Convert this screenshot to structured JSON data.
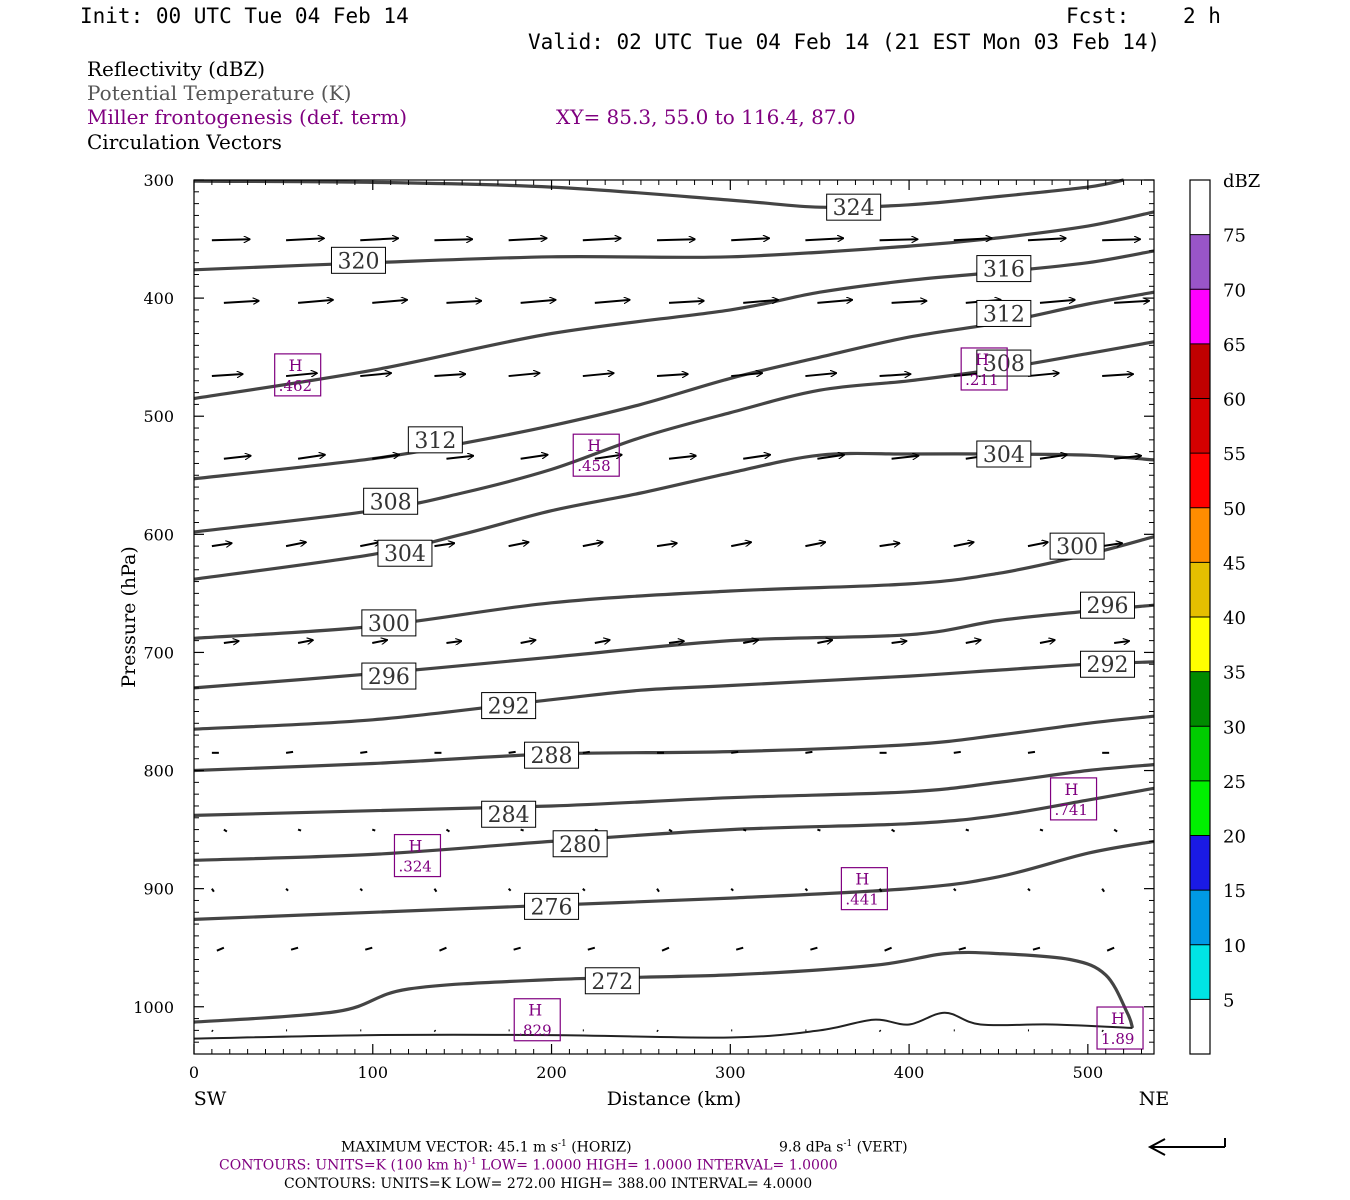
{
  "header": {
    "init": "Init: 00 UTC Tue 04 Feb 14",
    "fcst_label": "Fcst:",
    "fcst_value": "2 h",
    "valid": "Valid: 02 UTC Tue 04 Feb 14 (21 EST Mon 03 Feb 14)"
  },
  "legend": {
    "reflectivity": "Reflectivity (dBZ)",
    "theta": "Potential Temperature (K)",
    "miller": "Miller frontogenesis (def. term)",
    "xy": "XY=  85.3, 55.0 to 116.4, 87.0",
    "vectors": "Circulation Vectors"
  },
  "colors": {
    "contour": "#444444",
    "purple": "#800080",
    "vector": "#000000"
  },
  "colorbar": {
    "title": "dBZ",
    "levels": [
      {
        "label": "5",
        "color": "#00e5e5"
      },
      {
        "label": "10",
        "color": "#0099e5"
      },
      {
        "label": "15",
        "color": "#1a1ae5"
      },
      {
        "label": "20",
        "color": "#00f000"
      },
      {
        "label": "25",
        "color": "#00cc00"
      },
      {
        "label": "30",
        "color": "#008a00"
      },
      {
        "label": "35",
        "color": "#ffff00"
      },
      {
        "label": "40",
        "color": "#e5bf00"
      },
      {
        "label": "45",
        "color": "#ff8c00"
      },
      {
        "label": "50",
        "color": "#ff0000"
      },
      {
        "label": "55",
        "color": "#d40000"
      },
      {
        "label": "60",
        "color": "#c00000"
      },
      {
        "label": "65",
        "color": "#ff00ff"
      },
      {
        "label": "70",
        "color": "#9955c8"
      },
      {
        "label": "75",
        "color": "#ffffff"
      }
    ]
  },
  "footer": {
    "max_vector": "MAXIMUM VECTOR:  45.1 m s",
    "max_vector_exp": "-1",
    "max_vector_horiz": " (HORIZ)",
    "vert_value": "9.8 dPa s",
    "vert_exp": "-1",
    "vert_suffix": " (VERT)",
    "contours_miller_a": "CONTOURS:  UNITS=K (100 km h)",
    "contours_miller_exp": "-1",
    "contours_miller_b": "  LOW=   1.0000       HIGH=  1.0000       INTERVAL=     1.0000",
    "contours_theta": "CONTOURS:  UNITS=K   LOW=   272.00       HIGH=   388.00       INTERVAL=      4.0000"
  },
  "chart_data": {
    "type": "line",
    "title": "",
    "xlabel": "Distance (km)",
    "ylabel": "Pressure (hPa)",
    "xlim": [
      0,
      537
    ],
    "ylim": [
      1040,
      300
    ],
    "y_log": false,
    "x_ticks": [
      "0",
      "100",
      "200",
      "300",
      "400",
      "500"
    ],
    "y_ticks": [
      "300",
      "400",
      "500",
      "600",
      "700",
      "800",
      "900",
      "1000"
    ],
    "x_end_labels": {
      "left": "SW",
      "right": "NE"
    },
    "grid": false,
    "series": [
      {
        "name": "324",
        "values": [
          [
            0,
            301
          ],
          [
            100,
            302
          ],
          [
            200,
            306
          ],
          [
            300,
            317
          ],
          [
            350,
            323
          ],
          [
            400,
            321
          ],
          [
            450,
            314
          ],
          [
            500,
            306
          ],
          [
            520,
            300
          ]
        ],
        "label_at": [
          369,
          323
        ]
      },
      {
        "name": "320",
        "values": [
          [
            0,
            376
          ],
          [
            100,
            370
          ],
          [
            200,
            365
          ],
          [
            300,
            365
          ],
          [
            400,
            356
          ],
          [
            450,
            349
          ],
          [
            500,
            339
          ],
          [
            537,
            327
          ]
        ],
        "label_at": [
          92,
          368
        ]
      },
      {
        "name": "316",
        "values": [
          [
            0,
            485
          ],
          [
            100,
            461
          ],
          [
            200,
            430
          ],
          [
            300,
            410
          ],
          [
            350,
            395
          ],
          [
            400,
            385
          ],
          [
            450,
            378
          ],
          [
            500,
            370
          ],
          [
            537,
            360
          ]
        ],
        "label_at": [
          453,
          375
        ]
      },
      {
        "name": "312",
        "values": [
          [
            0,
            553
          ],
          [
            100,
            536
          ],
          [
            150,
            523
          ],
          [
            200,
            508
          ],
          [
            250,
            490
          ],
          [
            300,
            468
          ],
          [
            350,
            450
          ],
          [
            400,
            433
          ],
          [
            450,
            421
          ],
          [
            500,
            405
          ],
          [
            537,
            395
          ]
        ],
        "label_at": [
          135,
          520
        ],
        "label2": "312",
        "label2_at": [
          453,
          413
        ]
      },
      {
        "name": "308",
        "values": [
          [
            0,
            598
          ],
          [
            100,
            580
          ],
          [
            150,
            565
          ],
          [
            200,
            545
          ],
          [
            250,
            518
          ],
          [
            300,
            497
          ],
          [
            350,
            478
          ],
          [
            400,
            470
          ],
          [
            450,
            460
          ],
          [
            500,
            447
          ],
          [
            537,
            437
          ]
        ],
        "label_at": [
          110,
          572
        ],
        "label2": "308",
        "label2_at": [
          453,
          455
        ]
      },
      {
        "name": "304",
        "values": [
          [
            0,
            638
          ],
          [
            100,
            617
          ],
          [
            150,
            600
          ],
          [
            200,
            580
          ],
          [
            250,
            565
          ],
          [
            300,
            548
          ],
          [
            350,
            533
          ],
          [
            400,
            532
          ],
          [
            450,
            532
          ],
          [
            500,
            533
          ],
          [
            537,
            537
          ]
        ],
        "label_at": [
          118,
          616
        ],
        "label2": "304",
        "label2_at": [
          453,
          532
        ]
      },
      {
        "name": "300",
        "values": [
          [
            0,
            688
          ],
          [
            100,
            678
          ],
          [
            200,
            658
          ],
          [
            300,
            648
          ],
          [
            400,
            642
          ],
          [
            450,
            633
          ],
          [
            500,
            617
          ],
          [
            537,
            602
          ]
        ],
        "label_at": [
          109,
          675
        ],
        "label2": "300",
        "label2_at": [
          494,
          610
        ]
      },
      {
        "name": "296",
        "values": [
          [
            0,
            730
          ],
          [
            100,
            718
          ],
          [
            200,
            704
          ],
          [
            300,
            690
          ],
          [
            400,
            685
          ],
          [
            450,
            673
          ],
          [
            500,
            665
          ],
          [
            537,
            660
          ]
        ],
        "label_at": [
          109,
          720
        ],
        "label2": "296",
        "label2_at": [
          511,
          660
        ]
      },
      {
        "name": "292",
        "values": [
          [
            0,
            765
          ],
          [
            100,
            757
          ],
          [
            200,
            740
          ],
          [
            250,
            732
          ],
          [
            300,
            728
          ],
          [
            400,
            720
          ],
          [
            450,
            715
          ],
          [
            500,
            710
          ],
          [
            537,
            708
          ]
        ],
        "label_at": [
          176,
          745
        ],
        "label2": "292",
        "label2_at": [
          511,
          710
        ]
      },
      {
        "name": "288",
        "values": [
          [
            0,
            800
          ],
          [
            100,
            794
          ],
          [
            200,
            786
          ],
          [
            300,
            784
          ],
          [
            400,
            778
          ],
          [
            450,
            770
          ],
          [
            500,
            760
          ],
          [
            537,
            754
          ]
        ],
        "label_at": [
          200,
          787
        ]
      },
      {
        "name": "284",
        "values": [
          [
            0,
            838
          ],
          [
            100,
            834
          ],
          [
            200,
            830
          ],
          [
            300,
            823
          ],
          [
            400,
            818
          ],
          [
            450,
            810
          ],
          [
            500,
            800
          ],
          [
            537,
            795
          ]
        ],
        "label_at": [
          176,
          837
        ]
      },
      {
        "name": "280",
        "values": [
          [
            0,
            876
          ],
          [
            100,
            871
          ],
          [
            200,
            860
          ],
          [
            300,
            850
          ],
          [
            400,
            845
          ],
          [
            450,
            838
          ],
          [
            500,
            825
          ],
          [
            537,
            815
          ]
        ],
        "label_at": [
          216,
          862
        ]
      },
      {
        "name": "276",
        "values": [
          [
            0,
            926
          ],
          [
            100,
            920
          ],
          [
            200,
            914
          ],
          [
            300,
            908
          ],
          [
            400,
            900
          ],
          [
            450,
            890
          ],
          [
            500,
            870
          ],
          [
            537,
            860
          ]
        ],
        "label_at": [
          200,
          915
        ]
      },
      {
        "name": "272",
        "values": [
          [
            0,
            1013
          ],
          [
            80,
            1004
          ],
          [
            120,
            985
          ],
          [
            200,
            977
          ],
          [
            300,
            973
          ],
          [
            380,
            965
          ],
          [
            420,
            955
          ],
          [
            450,
            955
          ],
          [
            490,
            960
          ],
          [
            510,
            973
          ],
          [
            522,
            1005
          ],
          [
            525,
            1018
          ]
        ],
        "label_at": [
          234,
          978
        ]
      },
      {
        "name": "surface",
        "values": [
          [
            0,
            1027
          ],
          [
            100,
            1024
          ],
          [
            200,
            1024
          ],
          [
            300,
            1026
          ],
          [
            350,
            1020
          ],
          [
            380,
            1011
          ],
          [
            400,
            1015
          ],
          [
            420,
            1005
          ],
          [
            440,
            1015
          ],
          [
            480,
            1015
          ],
          [
            525,
            1018
          ]
        ]
      }
    ],
    "highs": [
      {
        "label": "H",
        "value": ".462",
        "at": [
          58,
          465
        ]
      },
      {
        "label": "H",
        "value": ".458",
        "at": [
          225,
          533
        ]
      },
      {
        "label": "H",
        "value": ".211",
        "at": [
          442,
          460
        ]
      },
      {
        "label": "H",
        "value": ".741",
        "at": [
          492,
          824
        ]
      },
      {
        "label": "H",
        "value": ".324",
        "at": [
          125,
          872
        ]
      },
      {
        "label": "H",
        "value": ".441",
        "at": [
          375,
          900
        ]
      },
      {
        "label": "H",
        "value": ".829",
        "at": [
          192,
          1011
        ]
      },
      {
        "label": "H",
        "value": "1.89",
        "at": [
          518,
          1018
        ]
      }
    ],
    "vector_rows": [
      {
        "p": 351,
        "u": 38,
        "w": 2
      },
      {
        "p": 404,
        "u": 35,
        "w": 3
      },
      {
        "p": 466,
        "u": 31,
        "w": 3
      },
      {
        "p": 536,
        "u": 27,
        "w": 4
      },
      {
        "p": 610,
        "u": 20,
        "w": 4
      },
      {
        "p": 692,
        "u": 15,
        "w": 3
      },
      {
        "p": 785,
        "u": 7,
        "w": 1
      },
      {
        "p": 850,
        "u": 3,
        "w": -1
      },
      {
        "p": 900,
        "u": 2,
        "w": -2
      },
      {
        "p": 950,
        "u": -7,
        "w": -2
      },
      {
        "p": 1020,
        "u": 1,
        "w": 0
      }
    ]
  }
}
